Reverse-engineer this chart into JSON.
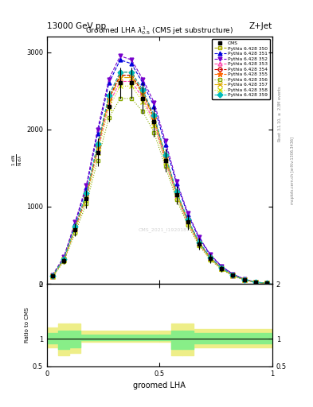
{
  "title_top": "13000 GeV pp",
  "title_right": "Z+Jet",
  "plot_title": "Groomed LHA $\\lambda^{1}_{0.5}$ (CMS jet substructure)",
  "xlabel": "groomed LHA",
  "ylabel": "$\\frac{1}{\\mathrm{N}} / \\mathrm{d}\\lambda$",
  "ylabel_ratio": "Ratio to CMS",
  "right_label1": "Rivet 3.1.10, $\\geq$ 2.3M events",
  "right_label2": "mcplots.cern.ch [arXiv:1306.3436]",
  "watermark": "CMS_2021_I1920187",
  "x_data": [
    0.025,
    0.075,
    0.125,
    0.175,
    0.225,
    0.275,
    0.325,
    0.375,
    0.425,
    0.475,
    0.525,
    0.575,
    0.625,
    0.675,
    0.725,
    0.775,
    0.825,
    0.875,
    0.925,
    0.975
  ],
  "cms_data": [
    100,
    300,
    700,
    1100,
    1700,
    2300,
    2600,
    2600,
    2400,
    2100,
    1600,
    1150,
    800,
    520,
    330,
    200,
    110,
    55,
    20,
    8
  ],
  "cms_errors": [
    20,
    40,
    80,
    120,
    180,
    200,
    200,
    200,
    200,
    200,
    150,
    120,
    100,
    80,
    60,
    40,
    25,
    15,
    8,
    4
  ],
  "series": [
    {
      "label": "Pythia 6.428 350",
      "color": "#aaaa00",
      "linestyle": "--",
      "marker": "s",
      "markerfilled": false,
      "data": [
        100,
        320,
        730,
        1150,
        1780,
        2400,
        2700,
        2700,
        2480,
        2150,
        1650,
        1180,
        820,
        535,
        338,
        202,
        112,
        56,
        21,
        8
      ]
    },
    {
      "label": "Pythia 6.428 351",
      "color": "#0000dd",
      "linestyle": "--",
      "marker": "^",
      "markerfilled": true,
      "data": [
        110,
        340,
        780,
        1250,
        1950,
        2600,
        2900,
        2850,
        2600,
        2300,
        1800,
        1300,
        900,
        590,
        370,
        225,
        125,
        62,
        23,
        9
      ]
    },
    {
      "label": "Pythia 6.428 352",
      "color": "#7700cc",
      "linestyle": "--",
      "marker": "v",
      "markerfilled": true,
      "data": [
        115,
        350,
        800,
        1280,
        2000,
        2650,
        2950,
        2900,
        2650,
        2350,
        1850,
        1330,
        920,
        605,
        380,
        228,
        127,
        63,
        24,
        9
      ]
    },
    {
      "label": "Pythia 6.428 353",
      "color": "#ff44aa",
      "linestyle": "--",
      "marker": "^",
      "markerfilled": false,
      "data": [
        98,
        310,
        710,
        1120,
        1730,
        2330,
        2620,
        2620,
        2410,
        2090,
        1600,
        1145,
        795,
        518,
        328,
        196,
        109,
        54,
        20,
        8
      ]
    },
    {
      "label": "Pythia 6.428 354",
      "color": "#cc0000",
      "linestyle": "--",
      "marker": "o",
      "markerfilled": false,
      "data": [
        100,
        320,
        730,
        1150,
        1780,
        2400,
        2700,
        2700,
        2480,
        2150,
        1650,
        1180,
        820,
        535,
        338,
        202,
        112,
        56,
        21,
        8
      ]
    },
    {
      "label": "Pythia 6.428 355",
      "color": "#ff6600",
      "linestyle": "--",
      "marker": "*",
      "markerfilled": true,
      "data": [
        102,
        325,
        745,
        1170,
        1810,
        2440,
        2740,
        2740,
        2510,
        2180,
        1670,
        1195,
        830,
        540,
        342,
        205,
        113,
        57,
        21,
        8
      ]
    },
    {
      "label": "Pythia 6.428 356",
      "color": "#88aa00",
      "linestyle": ":",
      "marker": "s",
      "markerfilled": false,
      "data": [
        90,
        290,
        660,
        1040,
        1600,
        2150,
        2400,
        2400,
        2230,
        1960,
        1520,
        1090,
        760,
        495,
        312,
        186,
        104,
        52,
        19,
        7
      ]
    },
    {
      "label": "Pythia 6.428 357",
      "color": "#ddaa00",
      "linestyle": "-.",
      "marker": "x",
      "markerfilled": true,
      "data": [
        99,
        318,
        725,
        1140,
        1765,
        2380,
        2670,
        2670,
        2460,
        2130,
        1635,
        1168,
        812,
        530,
        335,
        200,
        111,
        55,
        21,
        8
      ]
    },
    {
      "label": "Pythia 6.428 358",
      "color": "#ccdd00",
      "linestyle": ":",
      "marker": "x",
      "markerfilled": true,
      "data": [
        95,
        305,
        695,
        1095,
        1695,
        2280,
        2560,
        2560,
        2360,
        2050,
        1575,
        1125,
        782,
        510,
        322,
        193,
        107,
        53,
        20,
        8
      ]
    },
    {
      "label": "Pythia 6.428 359",
      "color": "#00bbbb",
      "linestyle": "--",
      "marker": "D",
      "markerfilled": true,
      "data": [
        102,
        325,
        745,
        1170,
        1810,
        2440,
        2740,
        2740,
        2510,
        2180,
        1670,
        1195,
        830,
        540,
        342,
        205,
        113,
        57,
        21,
        8
      ]
    }
  ],
  "yticks": [
    0,
    1000,
    2000,
    3000
  ],
  "ylim_main": [
    0,
    3200
  ],
  "ylim_ratio": [
    0.5,
    2.0
  ],
  "xlim": [
    0.0,
    1.0
  ],
  "ratio_bands": {
    "yellow_edges": [
      0.0,
      0.05,
      0.1,
      0.15,
      0.5,
      0.55,
      0.6,
      0.65,
      1.0
    ],
    "yellow_lo": [
      0.85,
      0.7,
      0.75,
      0.95,
      0.95,
      0.7,
      0.7,
      0.85,
      0.85
    ],
    "yellow_hi": [
      1.2,
      1.28,
      1.28,
      1.15,
      1.15,
      1.28,
      1.28,
      1.18,
      1.18
    ],
    "green_edges": [
      0.0,
      0.05,
      0.1,
      0.15,
      0.5,
      0.55,
      0.6,
      0.65,
      1.0
    ],
    "green_lo": [
      0.92,
      0.82,
      0.85,
      0.98,
      0.98,
      0.82,
      0.82,
      0.92,
      0.92
    ],
    "green_hi": [
      1.1,
      1.15,
      1.15,
      1.08,
      1.08,
      1.15,
      1.15,
      1.1,
      1.1
    ]
  }
}
